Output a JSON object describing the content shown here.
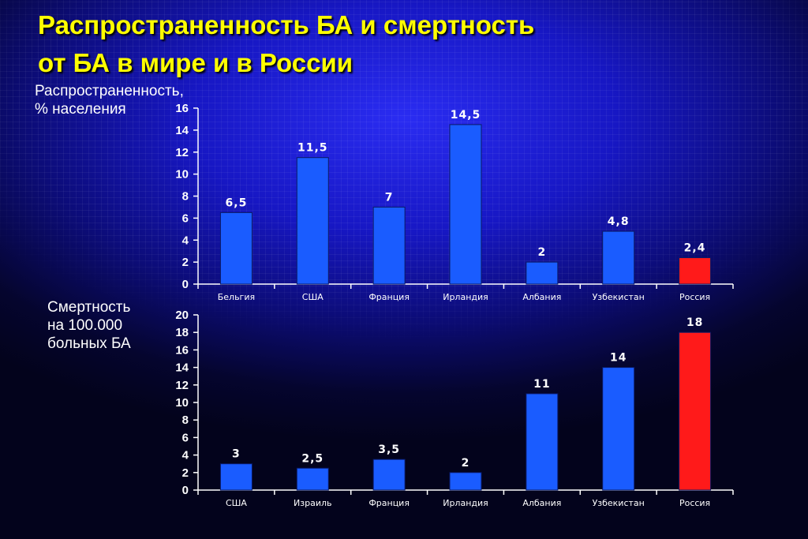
{
  "slide": {
    "title_line1": "Распространенность БА и смертность",
    "title_line2": "от БА в мире и в России",
    "colors": {
      "title": "#ffff00",
      "bar": "#1a5cff",
      "highlight_bar": "#ff1a1a",
      "axis": "#ffffff"
    }
  },
  "chart_data": [
    {
      "type": "bar",
      "ylabel_lines": [
        "Распространенность,",
        "% населения"
      ],
      "categories": [
        "Бельгия",
        "США",
        "Франция",
        "Ирландия",
        "Албания",
        "Узбекистан",
        "Россия"
      ],
      "values": [
        6.5,
        11.5,
        7,
        14.5,
        2,
        4.8,
        2.4
      ],
      "data_labels": [
        "6,5",
        "11,5",
        "7",
        "14,5",
        "2",
        "4,8",
        "2,4"
      ],
      "highlight": "Россия",
      "ylim": [
        0,
        16
      ],
      "yticks": [
        0,
        2,
        4,
        6,
        8,
        10,
        12,
        14,
        16
      ]
    },
    {
      "type": "bar",
      "ylabel_lines": [
        "Смертность",
        "на 100.000",
        "больных БА"
      ],
      "categories": [
        "США",
        "Израиль",
        "Франция",
        "Ирландия",
        "Албания",
        "Узбекистан",
        "Россия"
      ],
      "values": [
        3,
        2.5,
        3.5,
        2,
        11,
        14,
        18
      ],
      "data_labels": [
        "3",
        "2,5",
        "3,5",
        "2",
        "11",
        "14",
        "18"
      ],
      "highlight": "Россия",
      "ylim": [
        0,
        20
      ],
      "yticks": [
        0,
        2,
        4,
        6,
        8,
        10,
        12,
        14,
        16,
        18,
        20
      ]
    }
  ]
}
